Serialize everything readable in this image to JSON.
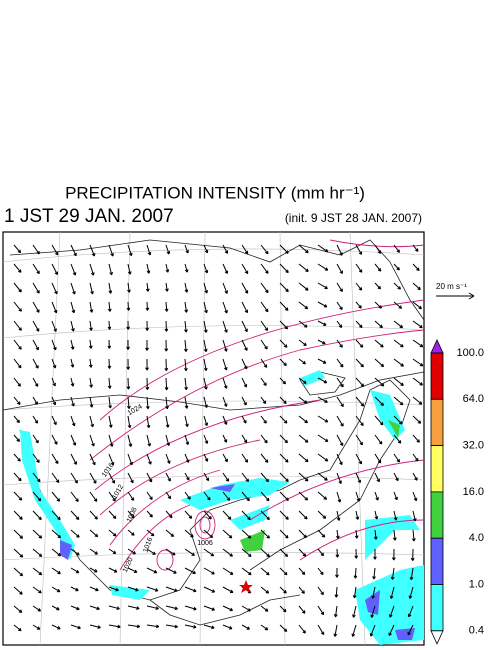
{
  "header": {
    "title": "PRECIPITATION INTENSITY (mm hr⁻¹)",
    "valid_time": "1 JST 29 JAN. 2007",
    "init_time": "(init. 9 JST 28 JAN. 2007)"
  },
  "legend": {
    "wind_scale": "20 m s⁻¹",
    "top_color": "#a020f0",
    "levels": [
      {
        "label": "100.0",
        "color": "#e00000"
      },
      {
        "label": "64.0",
        "color": "#f4a040"
      },
      {
        "label": "32.0",
        "color": "#ffff60"
      },
      {
        "label": "16.0",
        "color": "#40d040"
      },
      {
        "label": "4.0",
        "color": "#6060ff"
      },
      {
        "label": "1.0",
        "color": "#40ffff"
      },
      {
        "label": "0.4",
        "color": "#ffffff"
      }
    ]
  },
  "map": {
    "contour_labels": [
      "1024",
      "1016",
      "1012",
      "1008",
      "1006",
      "1016",
      "1020"
    ]
  }
}
